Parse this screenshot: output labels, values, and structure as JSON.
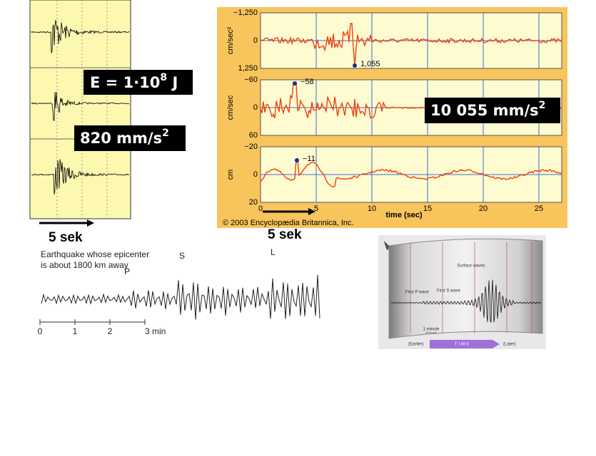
{
  "callouts": {
    "energy": {
      "base": "E = 1·10",
      "exponent": "8",
      "unit": " J"
    },
    "acceleration_left": {
      "base": "820 mm/s",
      "exponent": "2"
    },
    "acceleration_right": {
      "base": "10 055 mm/s",
      "exponent": "2"
    }
  },
  "scale_labels": [
    "5 sek",
    "5 sek"
  ],
  "britannica_chart": {
    "panels": [
      {
        "ylabel": "cm/sec²",
        "yticks": [
          "−1,250",
          "0",
          "1,250"
        ],
        "peak_label": "1,055"
      },
      {
        "ylabel": "cm/sec",
        "yticks": [
          "−60",
          "0",
          "60"
        ],
        "peak_label": "−58"
      },
      {
        "ylabel": "cm",
        "yticks": [
          "−20",
          "0",
          "20"
        ],
        "peak_label": "−11"
      }
    ],
    "xticks": [
      "0",
      "5",
      "10",
      "15",
      "20",
      "25"
    ],
    "xlabel": "time (sec)",
    "credit": "© 2003 Encyclopædia Britannica, Inc."
  },
  "annotated_seismogram": {
    "caption_line1": "Earthquake whose epicenter",
    "caption_line2": "is about 1800 km away",
    "phase_labels": [
      "P",
      "S",
      "L"
    ],
    "time_ticks": [
      "0",
      "1",
      "2",
      "3 min"
    ]
  },
  "drum_recorder": {
    "surface_waves": "Surface waves",
    "first_p_wave": "First P wave",
    "first_s_wave": "First S wave",
    "one_minute": "1 minute",
    "earlier": "(Earlier)",
    "time": "TIME",
    "later": "(Later)"
  }
}
